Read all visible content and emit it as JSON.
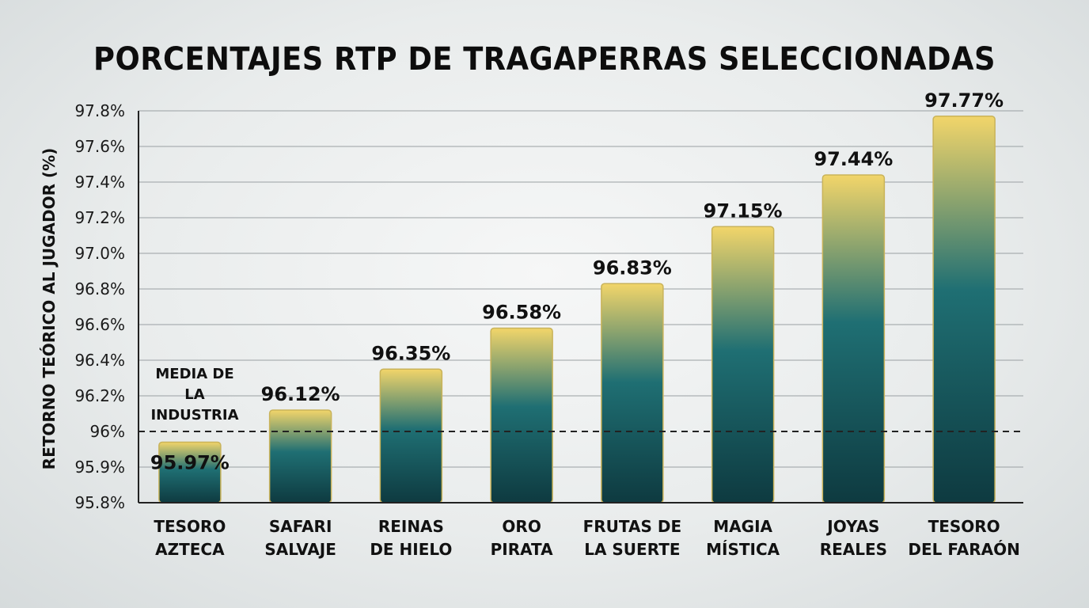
{
  "chart_data": {
    "type": "bar",
    "title": "PORCENTAJES RTP DE TRAGAPERRAS SELECCIONADAS",
    "ylabel": "RETORNO TEÓRICO AL JUGADOR (%)",
    "xlabel": "",
    "categories": [
      [
        "TESORO",
        "AZTECA"
      ],
      [
        "SAFARI",
        "SALVAJE"
      ],
      [
        "REINAS",
        "DE HIELO"
      ],
      [
        "ORO",
        "PIRATA"
      ],
      [
        "FRUTAS DE",
        "LA SUERTE"
      ],
      [
        "MAGIA",
        "MÍSTICA"
      ],
      [
        "JOYAS",
        "REALES"
      ],
      [
        "TESORO",
        "DEL FARAÓN"
      ]
    ],
    "values": [
      95.97,
      96.12,
      96.35,
      96.58,
      96.83,
      97.15,
      97.44,
      97.77
    ],
    "value_labels": [
      "95.97%",
      "96.12%",
      "96.35%",
      "96.58%",
      "96.83%",
      "97.15%",
      "97.44%",
      "97.77%"
    ],
    "y_ticks": [
      {
        "label": "95.8%",
        "value": 95.8
      },
      {
        "label": "95.9%",
        "value": 95.9
      },
      {
        "label": "96%",
        "value": 96.0
      },
      {
        "label": "96.2%",
        "value": 96.2
      },
      {
        "label": "96.4%",
        "value": 96.4
      },
      {
        "label": "96.6%",
        "value": 96.6
      },
      {
        "label": "96.8%",
        "value": 96.8
      },
      {
        "label": "97.0%",
        "value": 97.0
      },
      {
        "label": "97.2%",
        "value": 97.2
      },
      {
        "label": "97.4%",
        "value": 97.4
      },
      {
        "label": "97.6%",
        "value": 97.6
      },
      {
        "label": "97.8%",
        "value": 97.8
      }
    ],
    "reference_line": {
      "value": 96.0,
      "label": [
        "MEDIA DE",
        "LA",
        "INDUSTRIA"
      ],
      "style": "dashed"
    },
    "grid": true,
    "colors": {
      "bar_top": "#f2d56a",
      "bar_mid": "#1f6f73",
      "bar_bottom": "#0e3a40",
      "grid": "#9aa0a3",
      "axis": "#222222"
    }
  }
}
